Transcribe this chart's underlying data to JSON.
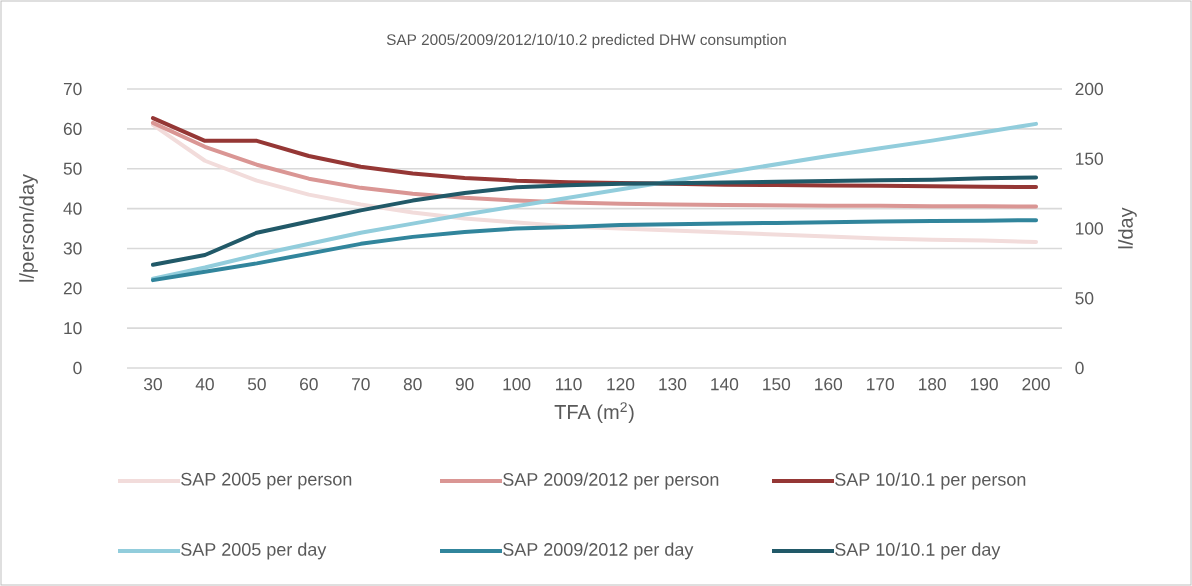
{
  "chart_data": {
    "type": "line",
    "title": "SAP 2005/2009/2012/10/10.2 predicted DHW consumption",
    "xlabel": "TFA (m$^{2}$)",
    "ylabel": "l/person/day",
    "y2label": "l/day",
    "categories": [
      "30",
      "40",
      "50",
      "60",
      "70",
      "80",
      "90",
      "100",
      "110",
      "120",
      "130",
      "140",
      "150",
      "160",
      "170",
      "180",
      "190",
      "200"
    ],
    "ylim": [
      0,
      70
    ],
    "yticks": [
      0,
      10,
      20,
      30,
      40,
      50,
      60,
      70
    ],
    "y2lim": [
      0,
      200
    ],
    "y2ticks": [
      0,
      50,
      100,
      150,
      200
    ],
    "grid": "y",
    "legend": "bottom",
    "marker": "none",
    "line_style": "solid",
    "series": [
      {
        "name": "SAP 2005 per person",
        "color": "#f2dcdb",
        "values": [
          61,
          52,
          47,
          43.5,
          41,
          39,
          37.5,
          36.5,
          35.5,
          35,
          34.5,
          34,
          33.5,
          33,
          32.5,
          32.2,
          32,
          31.6
        ]
      },
      {
        "name": "SAP 2009/2012 per person",
        "color": "#da9694",
        "values": [
          61.5,
          55.5,
          51,
          47.5,
          45.2,
          43.7,
          42.7,
          42,
          41.5,
          41.2,
          41,
          40.9,
          40.8,
          40.7,
          40.7,
          40.6,
          40.6,
          40.5
        ]
      },
      {
        "name": "SAP 10/10.1 per person",
        "color": "#953735",
        "values": [
          62.7,
          57,
          57,
          53.2,
          50.5,
          48.8,
          47.7,
          47,
          46.6,
          46.4,
          46.2,
          46,
          45.9,
          45.8,
          45.7,
          45.6,
          45.5,
          45.4
        ]
      },
      {
        "name": "SAP 2005 per day",
        "color": "#92cddc",
        "axis": "y2",
        "values": [
          64,
          72,
          81,
          89,
          97,
          103.5,
          110,
          116,
          122,
          128,
          134,
          140,
          146,
          152,
          157.5,
          163,
          169,
          175
        ]
      },
      {
        "name": "SAP 2009/2012 per day",
        "color": "#31859c",
        "axis": "y2",
        "values": [
          63,
          69,
          75,
          82,
          89,
          94,
          97.5,
          100,
          101,
          102.5,
          103,
          103.5,
          104,
          104.5,
          105,
          105.3,
          105.6,
          106
        ]
      },
      {
        "name": "SAP 10/10.1 per day",
        "color": "#215968",
        "axis": "y2",
        "values": [
          74,
          81,
          97,
          105,
          113,
          120,
          125.5,
          129.5,
          131,
          132,
          132.5,
          133,
          133.5,
          134,
          134.5,
          135,
          136,
          136.5
        ]
      }
    ]
  }
}
